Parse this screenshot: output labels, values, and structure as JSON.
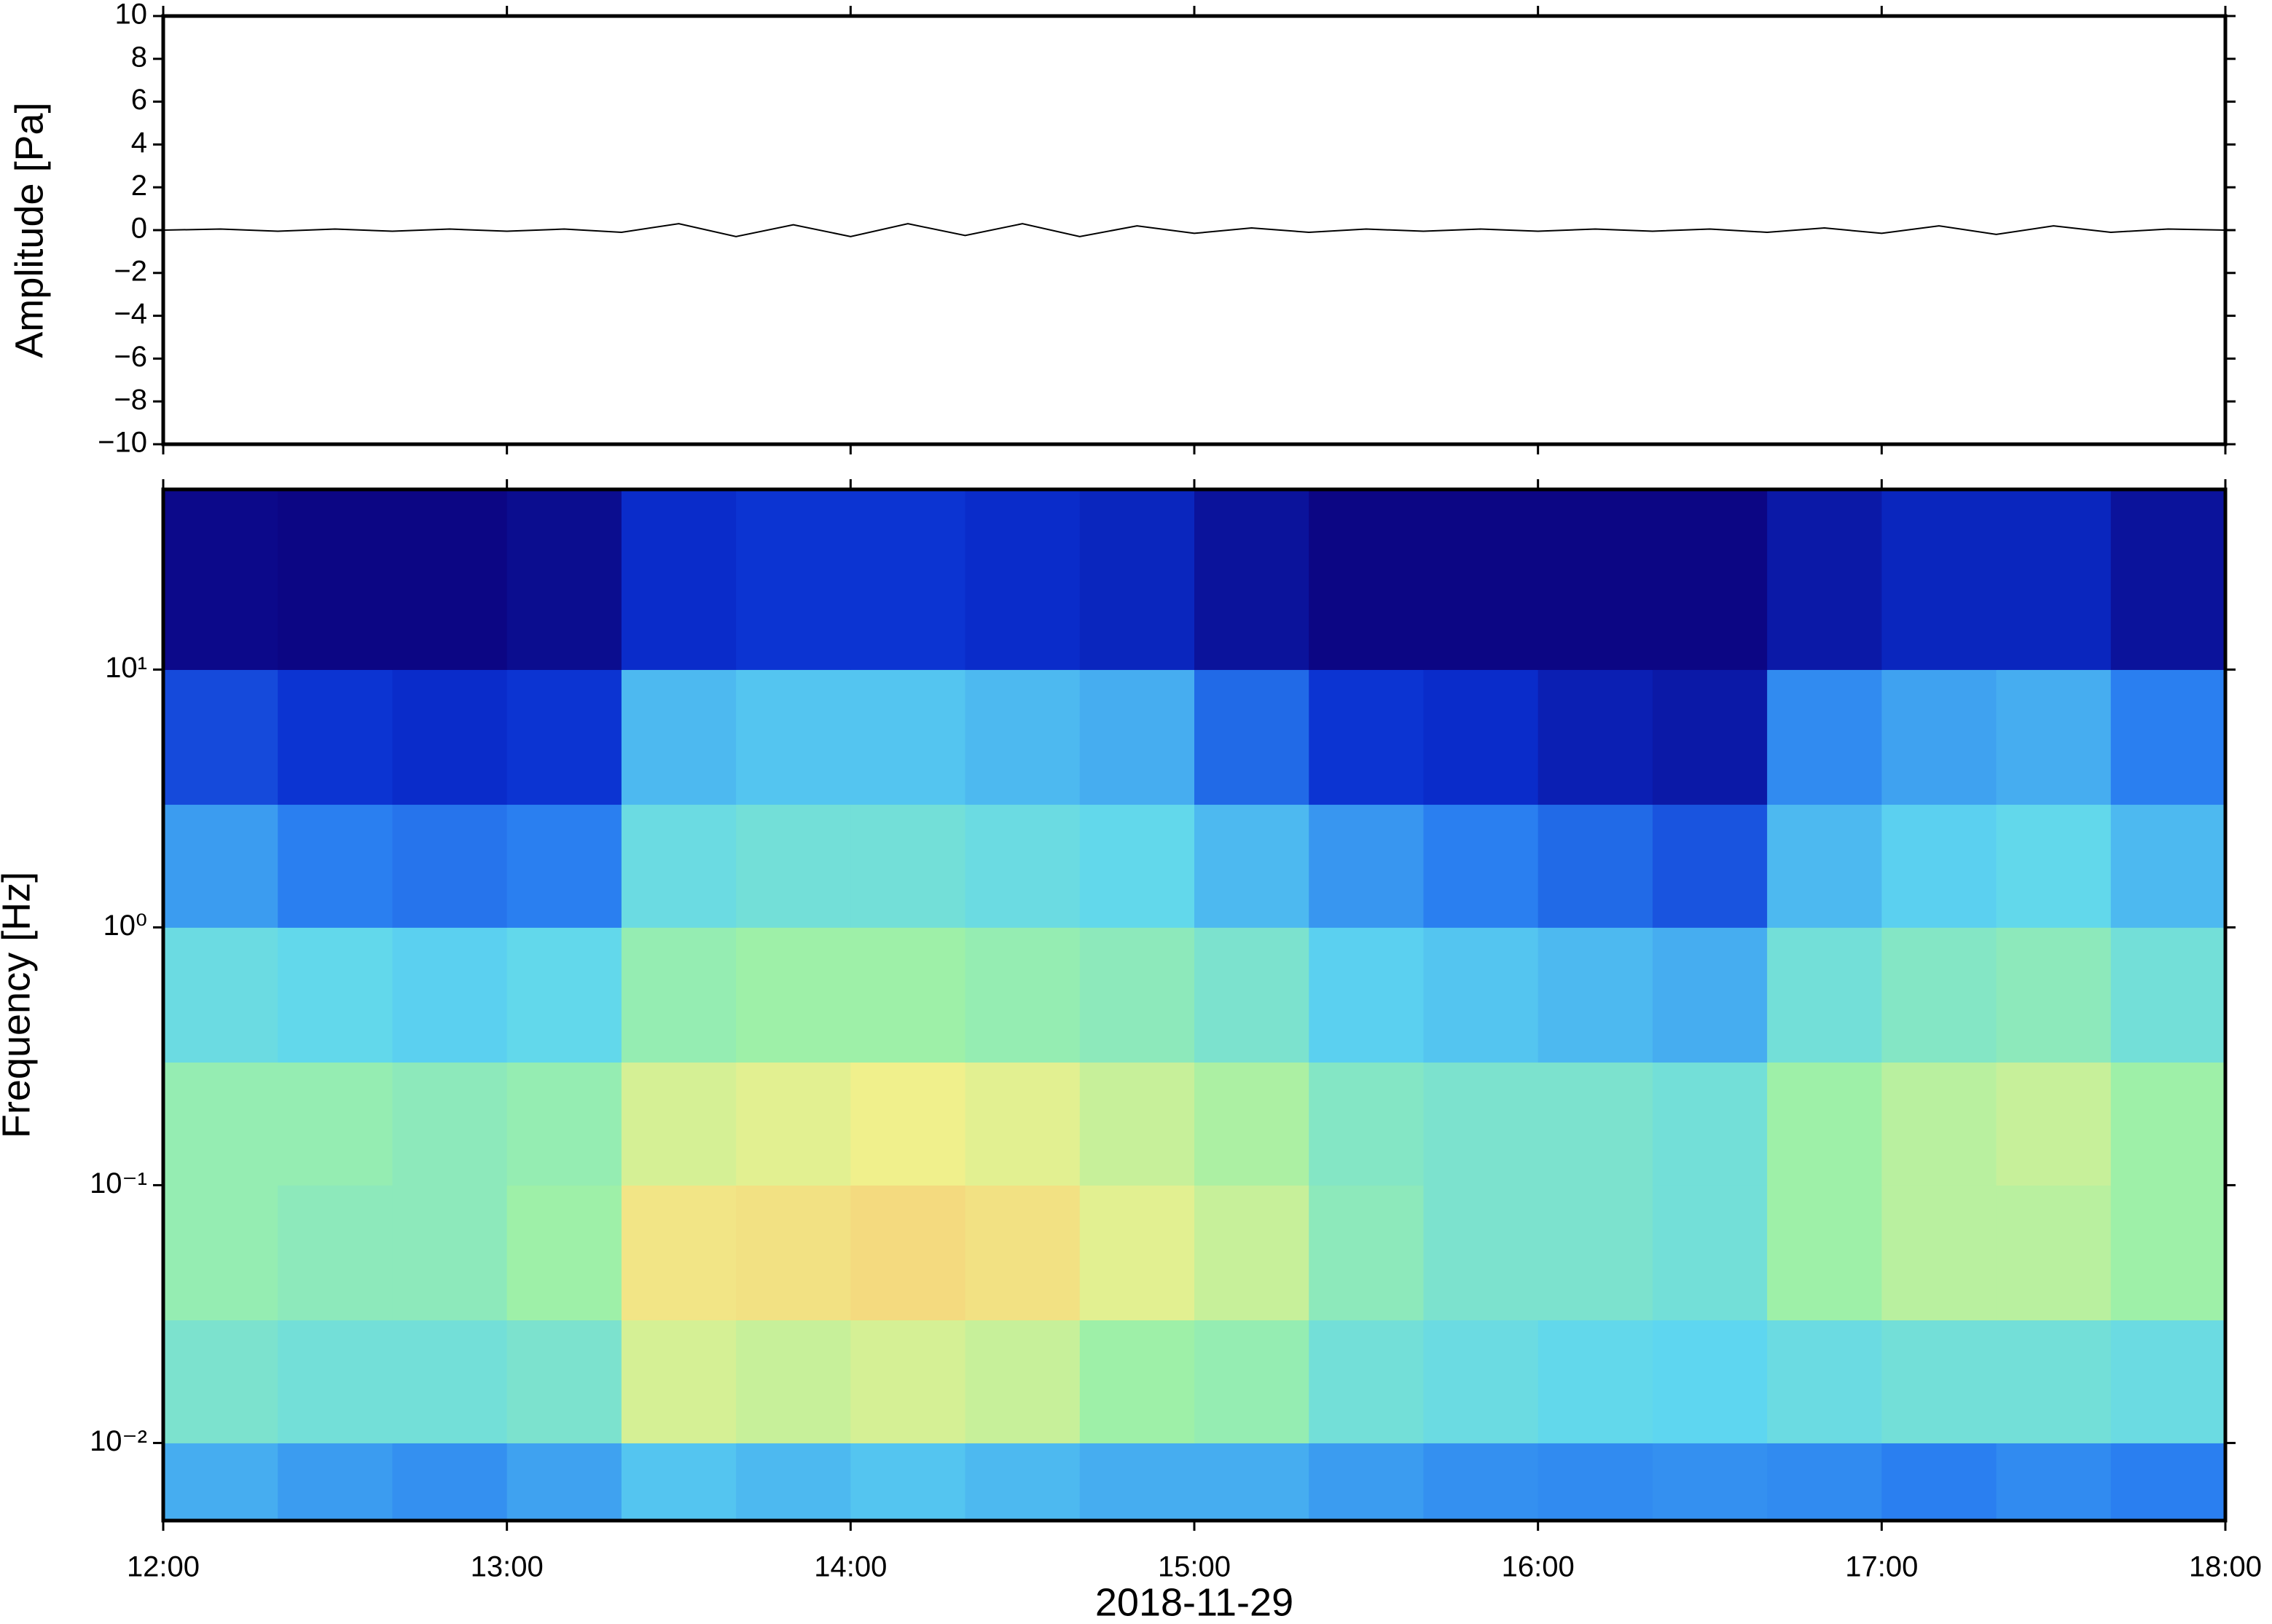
{
  "chart_data": [
    {
      "type": "line",
      "ylabel": "Amplitude [Pa]",
      "color": "#000000",
      "x": [
        "12:00",
        "12:10",
        "12:20",
        "12:30",
        "12:40",
        "12:50",
        "13:00",
        "13:10",
        "13:20",
        "13:30",
        "13:40",
        "13:50",
        "14:00",
        "14:10",
        "14:20",
        "14:30",
        "14:40",
        "14:50",
        "15:00",
        "15:10",
        "15:20",
        "15:30",
        "15:40",
        "15:50",
        "16:00",
        "16:10",
        "16:20",
        "16:30",
        "16:40",
        "16:50",
        "17:00",
        "17:10",
        "17:20",
        "17:30",
        "17:40",
        "17:50",
        "18:00"
      ],
      "values": [
        0,
        0.05,
        -0.05,
        0.05,
        -0.05,
        0.05,
        -0.05,
        0.05,
        -0.1,
        0.3,
        -0.3,
        0.25,
        -0.3,
        0.3,
        -0.25,
        0.3,
        -0.3,
        0.2,
        -0.15,
        0.1,
        -0.1,
        0.05,
        -0.05,
        0.05,
        -0.05,
        0.05,
        -0.05,
        0.05,
        -0.1,
        0.1,
        -0.15,
        0.2,
        -0.2,
        0.2,
        -0.1,
        0.05,
        0
      ],
      "xlim": [
        "12:00",
        "18:00"
      ],
      "xticks": [
        "12:00",
        "13:00",
        "14:00",
        "15:00",
        "16:00",
        "17:00",
        "18:00"
      ],
      "ylim": [
        -10,
        10
      ],
      "yticks": [
        {
          "value": -10,
          "label": "−10"
        },
        {
          "value": -8,
          "label": "−8"
        },
        {
          "value": -6,
          "label": "−6"
        },
        {
          "value": -4,
          "label": "−4"
        },
        {
          "value": -2,
          "label": "−2"
        },
        0,
        2,
        4,
        6,
        8,
        10
      ]
    },
    {
      "type": "heatmap",
      "ylabel": "Frequency [Hz]",
      "xlabel": "2018-11-29",
      "log_y": true,
      "xlim": [
        "12:00",
        "18:00"
      ],
      "xticks": [
        "12:00",
        "13:00",
        "14:00",
        "15:00",
        "16:00",
        "17:00",
        "18:00"
      ],
      "ylim": [
        0.005,
        50
      ],
      "yticks": [
        {
          "value": 0.01,
          "label": "10⁻²"
        },
        {
          "value": 0.1,
          "label": "10⁻¹"
        },
        {
          "value": 1,
          "label": "10⁰"
        },
        {
          "value": 10,
          "label": "10¹"
        }
      ],
      "xbins": [
        "12:00",
        "12:20",
        "12:40",
        "13:00",
        "13:20",
        "13:40",
        "14:00",
        "14:20",
        "14:40",
        "15:00",
        "15:20",
        "15:40",
        "16:00",
        "16:20",
        "16:40",
        "17:00",
        "17:20",
        "17:40",
        "18:00"
      ],
      "ybins": [
        0.005,
        0.01,
        0.03,
        0.1,
        0.3,
        1,
        3,
        10,
        50
      ],
      "zlim": [
        0,
        1
      ],
      "colormap": [
        {
          "value": 0,
          "color": "#0c0078"
        },
        {
          "value": 0.15,
          "color": "#0a2fd0"
        },
        {
          "value": 0.3,
          "color": "#2a7ff0"
        },
        {
          "value": 0.45,
          "color": "#5ed6f0"
        },
        {
          "value": 0.6,
          "color": "#9ef0a8"
        },
        {
          "value": 0.72,
          "color": "#f0f08c"
        },
        {
          "value": 0.85,
          "color": "#f8c070"
        },
        {
          "value": 1,
          "color": "#f07050"
        }
      ],
      "values": [
        [
          0.38,
          0.35,
          0.33,
          0.36,
          0.42,
          0.4,
          0.42,
          0.4,
          0.38,
          0.38,
          0.35,
          0.33,
          0.32,
          0.33,
          0.32,
          0.3,
          0.32,
          0.3
        ],
        [
          0.52,
          0.5,
          0.5,
          0.52,
          0.68,
          0.66,
          0.68,
          0.66,
          0.6,
          0.58,
          0.5,
          0.48,
          0.46,
          0.45,
          0.48,
          0.5,
          0.5,
          0.48
        ],
        [
          0.58,
          0.56,
          0.56,
          0.6,
          0.75,
          0.76,
          0.78,
          0.76,
          0.7,
          0.66,
          0.56,
          0.52,
          0.52,
          0.5,
          0.6,
          0.64,
          0.64,
          0.6
        ],
        [
          0.58,
          0.58,
          0.56,
          0.58,
          0.68,
          0.7,
          0.72,
          0.7,
          0.66,
          0.62,
          0.54,
          0.52,
          0.52,
          0.5,
          0.6,
          0.64,
          0.66,
          0.6
        ],
        [
          0.48,
          0.46,
          0.44,
          0.46,
          0.58,
          0.6,
          0.6,
          0.58,
          0.56,
          0.52,
          0.44,
          0.42,
          0.4,
          0.38,
          0.5,
          0.54,
          0.56,
          0.5
        ],
        [
          0.35,
          0.3,
          0.28,
          0.3,
          0.48,
          0.5,
          0.5,
          0.48,
          0.46,
          0.4,
          0.34,
          0.3,
          0.26,
          0.22,
          0.4,
          0.44,
          0.46,
          0.4
        ],
        [
          0.2,
          0.16,
          0.14,
          0.16,
          0.4,
          0.42,
          0.42,
          0.4,
          0.38,
          0.26,
          0.16,
          0.14,
          0.1,
          0.08,
          0.32,
          0.36,
          0.38,
          0.3
        ],
        [
          0.03,
          0.02,
          0.02,
          0.04,
          0.14,
          0.16,
          0.16,
          0.14,
          0.12,
          0.06,
          0.02,
          0.02,
          0.02,
          0.02,
          0.08,
          0.12,
          0.12,
          0.06
        ]
      ]
    }
  ]
}
